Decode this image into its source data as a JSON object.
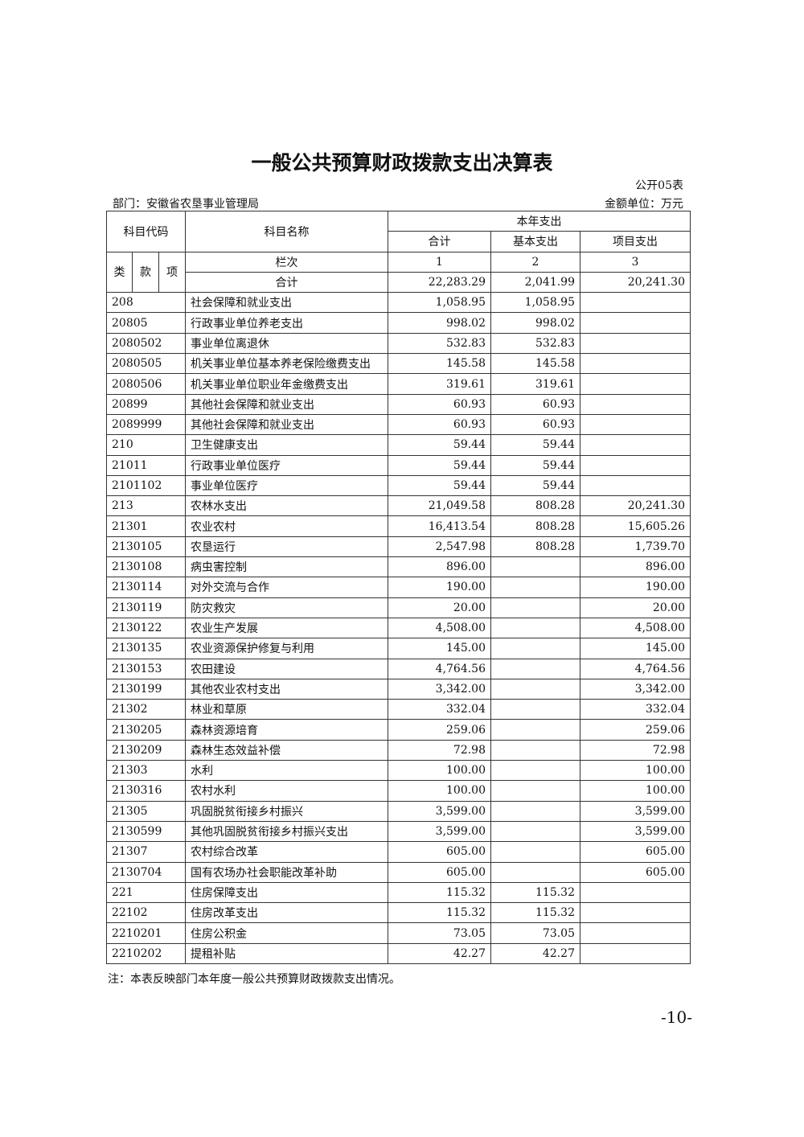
{
  "title": "一般公共预算财政拨款支出决算表",
  "form_no": "公开05表",
  "department": "部门：安徽省农垦事业管理局",
  "unit": "金额单位：万元",
  "header": {
    "code": "科目代码",
    "name": "科目名称",
    "group": "本年支出",
    "total": "合计",
    "basic": "基本支出",
    "project": "项目支出",
    "lei": "类",
    "kuan": "款",
    "xiang": "项",
    "col_label": "栏次",
    "col1": "1",
    "col2": "2",
    "col3": "3",
    "sum_label": "合计",
    "sum_total": "22,283.29",
    "sum_basic": "2,041.99",
    "sum_project": "20,241.30"
  },
  "rows": [
    [
      "208",
      "社会保障和就业支出",
      "1,058.95",
      "1,058.95",
      ""
    ],
    [
      "20805",
      "行政事业单位养老支出",
      "998.02",
      "998.02",
      ""
    ],
    [
      "2080502",
      "事业单位离退休",
      "532.83",
      "532.83",
      ""
    ],
    [
      "2080505",
      "机关事业单位基本养老保险缴费支出",
      "145.58",
      "145.58",
      ""
    ],
    [
      "2080506",
      "机关事业单位职业年金缴费支出",
      "319.61",
      "319.61",
      ""
    ],
    [
      "20899",
      "其他社会保障和就业支出",
      "60.93",
      "60.93",
      ""
    ],
    [
      "2089999",
      "其他社会保障和就业支出",
      "60.93",
      "60.93",
      ""
    ],
    [
      "210",
      "卫生健康支出",
      "59.44",
      "59.44",
      ""
    ],
    [
      "21011",
      "行政事业单位医疗",
      "59.44",
      "59.44",
      ""
    ],
    [
      "2101102",
      "事业单位医疗",
      "59.44",
      "59.44",
      ""
    ],
    [
      "213",
      "农林水支出",
      "21,049.58",
      "808.28",
      "20,241.30"
    ],
    [
      "21301",
      "农业农村",
      "16,413.54",
      "808.28",
      "15,605.26"
    ],
    [
      "2130105",
      "农垦运行",
      "2,547.98",
      "808.28",
      "1,739.70"
    ],
    [
      "2130108",
      "病虫害控制",
      "896.00",
      "",
      "896.00"
    ],
    [
      "2130114",
      "对外交流与合作",
      "190.00",
      "",
      "190.00"
    ],
    [
      "2130119",
      "防灾救灾",
      "20.00",
      "",
      "20.00"
    ],
    [
      "2130122",
      "农业生产发展",
      "4,508.00",
      "",
      "4,508.00"
    ],
    [
      "2130135",
      "农业资源保护修复与利用",
      "145.00",
      "",
      "145.00"
    ],
    [
      "2130153",
      "农田建设",
      "4,764.56",
      "",
      "4,764.56"
    ],
    [
      "2130199",
      "其他农业农村支出",
      "3,342.00",
      "",
      "3,342.00"
    ],
    [
      "21302",
      "林业和草原",
      "332.04",
      "",
      "332.04"
    ],
    [
      "2130205",
      "森林资源培育",
      "259.06",
      "",
      "259.06"
    ],
    [
      "2130209",
      "森林生态效益补偿",
      "72.98",
      "",
      "72.98"
    ],
    [
      "21303",
      "水利",
      "100.00",
      "",
      "100.00"
    ],
    [
      "2130316",
      "农村水利",
      "100.00",
      "",
      "100.00"
    ],
    [
      "21305",
      "巩固脱贫衔接乡村振兴",
      "3,599.00",
      "",
      "3,599.00"
    ],
    [
      "2130599",
      "其他巩固脱贫衔接乡村振兴支出",
      "3,599.00",
      "",
      "3,599.00"
    ],
    [
      "21307",
      "农村综合改革",
      "605.00",
      "",
      "605.00"
    ],
    [
      "2130704",
      "国有农场办社会职能改革补助",
      "605.00",
      "",
      "605.00"
    ],
    [
      "221",
      "住房保障支出",
      "115.32",
      "115.32",
      ""
    ],
    [
      "22102",
      "住房改革支出",
      "115.32",
      "115.32",
      ""
    ],
    [
      "2210201",
      "住房公积金",
      "73.05",
      "73.05",
      ""
    ],
    [
      "2210202",
      "提租补贴",
      "42.27",
      "42.27",
      ""
    ]
  ],
  "note": "注：本表反映部门本年度一般公共预算财政拨款支出情况。",
  "page_number": "-10-"
}
